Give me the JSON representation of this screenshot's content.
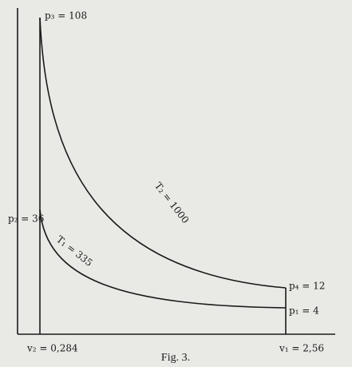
{
  "diagram": {
    "labels": {
      "p3": "p₃ = 108",
      "p2": "p₂ = 36",
      "p4": "p₄ = 12",
      "p1": "p₁ = 4",
      "v2": "v₂ = 0,284",
      "v1": "v₁ = 2,56",
      "T2": "T₂ = 1000",
      "T1": "T₁ = 335"
    },
    "caption": "Fig. 3."
  }
}
